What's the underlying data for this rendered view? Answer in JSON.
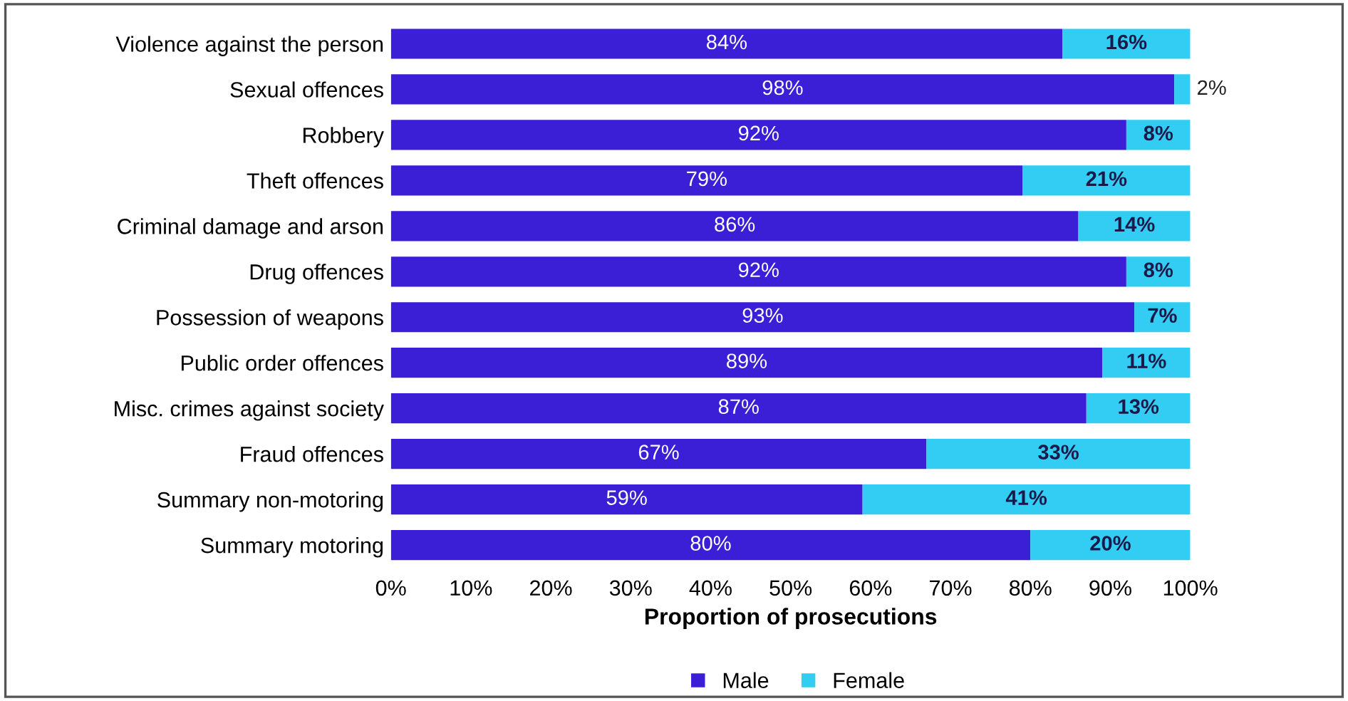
{
  "chart_data": {
    "type": "bar",
    "orientation": "horizontal",
    "stacked": true,
    "categories": [
      "Violence against the person",
      "Sexual offences",
      "Robbery",
      "Theft offences",
      "Criminal damage and arson",
      "Drug offences",
      "Possession of weapons",
      "Public order offences",
      "Misc. crimes against society",
      "Fraud offences",
      "Summary non-motoring",
      "Summary motoring"
    ],
    "series": [
      {
        "name": "Male",
        "color": "#3a1fd6",
        "values": [
          84,
          98,
          92,
          79,
          86,
          92,
          93,
          89,
          87,
          67,
          59,
          80
        ],
        "value_labels": [
          "84%",
          "98%",
          "92%",
          "79%",
          "86%",
          "92%",
          "93%",
          "89%",
          "87%",
          "67%",
          "59%",
          "80%"
        ]
      },
      {
        "name": "Female",
        "color": "#33ccf2",
        "values": [
          16,
          2,
          8,
          21,
          14,
          8,
          7,
          11,
          13,
          33,
          41,
          20
        ],
        "value_labels": [
          "16%",
          "2%",
          "8%",
          "21%",
          "14%",
          "8%",
          "7%",
          "11%",
          "13%",
          "33%",
          "41%",
          "20%"
        ]
      }
    ],
    "xlabel": "Proportion of prosecutions",
    "xlim": [
      0,
      100
    ],
    "xticks": [
      {
        "value": 0,
        "label": "0%"
      },
      {
        "value": 10,
        "label": "10%"
      },
      {
        "value": 20,
        "label": "20%"
      },
      {
        "value": 30,
        "label": "30%"
      },
      {
        "value": 40,
        "label": "40%"
      },
      {
        "value": 50,
        "label": "50%"
      },
      {
        "value": 60,
        "label": "60%"
      },
      {
        "value": 70,
        "label": "70%"
      },
      {
        "value": 80,
        "label": "80%"
      },
      {
        "value": 90,
        "label": "90%"
      },
      {
        "value": 100,
        "label": "100%"
      }
    ],
    "grid": false,
    "legend": "bottom"
  }
}
